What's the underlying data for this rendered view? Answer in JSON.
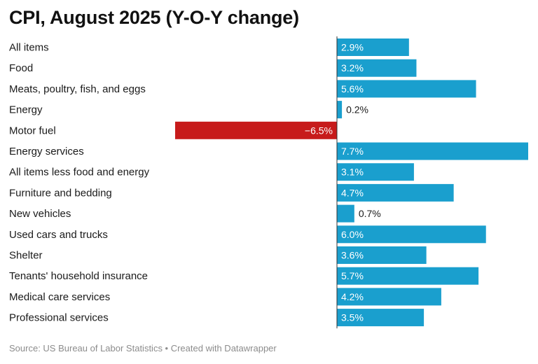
{
  "chart_data": {
    "type": "bar",
    "orientation": "horizontal",
    "title": "CPI, August 2025 (Y-O-Y change)",
    "categories": [
      "All items",
      "Food",
      "Meats, poultry, fish, and eggs",
      "Energy",
      "Motor fuel",
      "Energy services",
      "All items less food and energy",
      "Furniture and bedding",
      "New vehicles",
      "Used cars and trucks",
      "Shelter",
      "Tenants' household insurance",
      "Medical care services",
      "Professional services"
    ],
    "values": [
      2.9,
      3.2,
      5.6,
      0.2,
      -6.5,
      7.7,
      3.1,
      4.7,
      0.7,
      6.0,
      3.6,
      5.7,
      4.2,
      3.5
    ],
    "labels": [
      "2.9%",
      "3.2%",
      "5.6%",
      "0.2%",
      "−6.5%",
      "7.7%",
      "3.1%",
      "4.7%",
      "0.7%",
      "6.0%",
      "3.6%",
      "5.7%",
      "4.2%",
      "3.5%"
    ],
    "xlim": [
      -6.5,
      7.7
    ],
    "unit": "%",
    "colors": {
      "positive": "#1a9fce",
      "negative": "#c71b1b",
      "axis": "#333333"
    }
  },
  "footer": {
    "source": "Source: US Bureau of Labor Statistics • Created with Datawrapper"
  }
}
